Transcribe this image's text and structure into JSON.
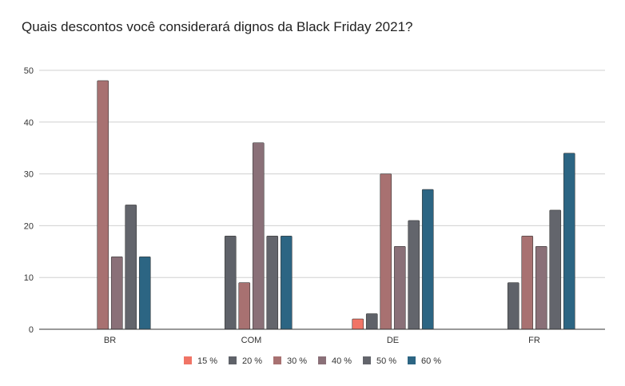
{
  "chart_data": {
    "type": "bar",
    "title": "Quais descontos você considerará dignos da Black Friday 2021?",
    "xlabel": "",
    "ylabel": "",
    "ylim": [
      0,
      50
    ],
    "yticks": [
      "0",
      "10",
      "20",
      "30",
      "40",
      "50"
    ],
    "grid": true,
    "legend_position": "bottom",
    "categories": [
      "BR",
      "COM",
      "DE",
      "FR"
    ],
    "series": [
      {
        "name": "15 %",
        "color": "#F07466",
        "values": [
          null,
          null,
          2,
          null
        ]
      },
      {
        "name": "20 %",
        "color": "#5F6269",
        "values": [
          null,
          18,
          3,
          9
        ]
      },
      {
        "name": "30 %",
        "color": "#A87171",
        "values": [
          48,
          9,
          30,
          18
        ]
      },
      {
        "name": "40 %",
        "color": "#8A7078",
        "values": [
          14,
          36,
          16,
          16
        ]
      },
      {
        "name": "50 %",
        "color": "#63656C",
        "values": [
          24,
          18,
          21,
          23
        ]
      },
      {
        "name": "60 %",
        "color": "#2C6583",
        "values": [
          14,
          18,
          27,
          34
        ]
      }
    ]
  }
}
